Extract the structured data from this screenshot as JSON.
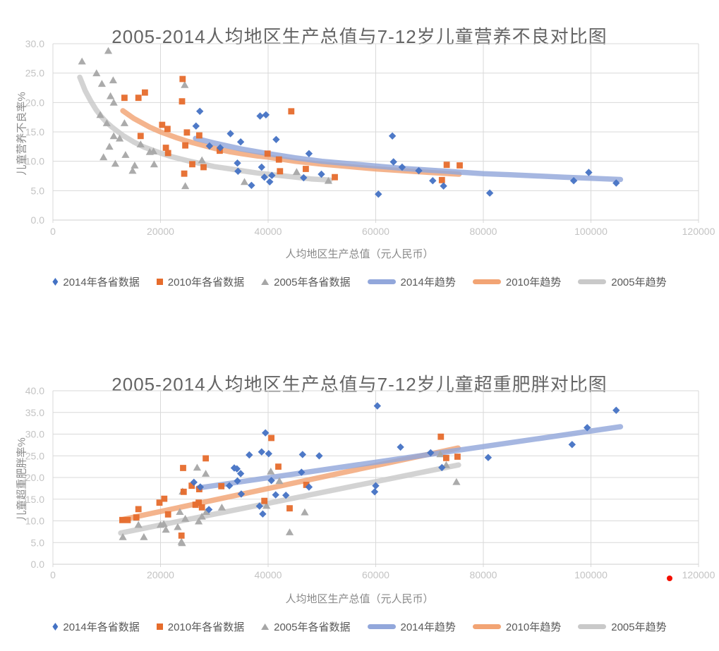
{
  "colors": {
    "blue": "#4472C4",
    "orange": "#E66C2C",
    "gray": "#A6A6A6",
    "blue_trend": "#92A7DB",
    "orange_trend": "#F2A474",
    "gray_trend": "#C9C9C9",
    "grid": "#D9D9D9",
    "axis_line": "#CFCFCF",
    "tick_text": "#C3C3C3",
    "axis_title_text": "#8A8A8A",
    "title_text": "#646464",
    "legend_text": "#595959",
    "red_dot": "#F40F00"
  },
  "legend": {
    "items": [
      {
        "label": "2014年各省数据",
        "marker": "diamond"
      },
      {
        "label": "2010年各省数据",
        "marker": "square"
      },
      {
        "label": "2005年各省数据",
        "marker": "triangle"
      },
      {
        "label": "2014年趋势",
        "marker": "line-blue"
      },
      {
        "label": "2010年趋势",
        "marker": "line-orange"
      },
      {
        "label": "2005年趋势",
        "marker": "line-gray"
      }
    ]
  },
  "annotations": {
    "red_dot": {
      "visible": true,
      "color": "#F40F00",
      "near_tick": "120000"
    }
  },
  "chart_data": [
    {
      "type": "scatter",
      "title": "2005-2014人均地区生产总值与7-12岁儿童营养不良对比图",
      "xlabel": "人均地区生产总值（元人民币）",
      "ylabel": "儿童营养不良率%",
      "xlim": [
        0,
        120000
      ],
      "ylim": [
        0,
        30
      ],
      "grid": true,
      "legend_position": "bottom",
      "xticks": [
        "0",
        "20000",
        "40000",
        "60000",
        "80000",
        "100000",
        "120000"
      ],
      "yticks": [
        "0.0",
        "5.0",
        "10.0",
        "15.0",
        "20.0",
        "25.0",
        "30.0"
      ],
      "series": [
        {
          "name": "2014年各省数据",
          "marker": "diamond",
          "color_key": "blue",
          "points": [
            [
              26600,
              16.0
            ],
            [
              27300,
              18.5
            ],
            [
              29100,
              12.6
            ],
            [
              31100,
              12.3
            ],
            [
              33000,
              14.7
            ],
            [
              34300,
              9.7
            ],
            [
              34400,
              8.3
            ],
            [
              34900,
              13.3
            ],
            [
              36900,
              5.9
            ],
            [
              38500,
              17.7
            ],
            [
              39600,
              17.9
            ],
            [
              38800,
              9.0
            ],
            [
              39300,
              7.3
            ],
            [
              40300,
              6.5
            ],
            [
              40700,
              7.6
            ],
            [
              41500,
              13.7
            ],
            [
              46600,
              7.2
            ],
            [
              47600,
              11.3
            ],
            [
              49900,
              7.8
            ],
            [
              60500,
              4.4
            ],
            [
              63100,
              14.3
            ],
            [
              63300,
              9.9
            ],
            [
              64900,
              9.0
            ],
            [
              68000,
              8.4
            ],
            [
              70600,
              6.7
            ],
            [
              72600,
              5.8
            ],
            [
              81200,
              4.6
            ],
            [
              96800,
              6.7
            ],
            [
              99600,
              8.1
            ],
            [
              104700,
              6.3
            ]
          ]
        },
        {
          "name": "2010年各省数据",
          "marker": "square",
          "color_key": "orange",
          "points": [
            [
              13300,
              20.8
            ],
            [
              15900,
              20.8
            ],
            [
              17100,
              21.7
            ],
            [
              16300,
              14.3
            ],
            [
              20300,
              16.2
            ],
            [
              21300,
              15.5
            ],
            [
              21000,
              12.3
            ],
            [
              21400,
              11.4
            ],
            [
              24000,
              20.2
            ],
            [
              24100,
              24.0
            ],
            [
              24900,
              14.9
            ],
            [
              24600,
              12.7
            ],
            [
              24400,
              7.9
            ],
            [
              25900,
              9.5
            ],
            [
              27200,
              14.4
            ],
            [
              28000,
              9.0
            ],
            [
              31000,
              11.8
            ],
            [
              39900,
              11.3
            ],
            [
              42000,
              10.3
            ],
            [
              42200,
              8.3
            ],
            [
              44300,
              18.5
            ],
            [
              47000,
              8.7
            ],
            [
              52400,
              7.3
            ],
            [
              72300,
              6.8
            ],
            [
              73200,
              9.4
            ],
            [
              75600,
              9.3
            ]
          ]
        },
        {
          "name": "2005年各省数据",
          "marker": "triangle",
          "color_key": "gray",
          "points": [
            [
              5400,
              27.0
            ],
            [
              8100,
              25.0
            ],
            [
              8800,
              17.9
            ],
            [
              9100,
              23.2
            ],
            [
              9400,
              10.7
            ],
            [
              10000,
              16.5
            ],
            [
              10300,
              28.8
            ],
            [
              10500,
              12.5
            ],
            [
              10700,
              21.1
            ],
            [
              11200,
              23.8
            ],
            [
              11300,
              20.0
            ],
            [
              11300,
              14.3
            ],
            [
              11600,
              9.6
            ],
            [
              12400,
              13.9
            ],
            [
              13300,
              16.5
            ],
            [
              13500,
              11.1
            ],
            [
              14800,
              8.4
            ],
            [
              15200,
              9.3
            ],
            [
              16300,
              12.9
            ],
            [
              18000,
              11.6
            ],
            [
              18700,
              11.7
            ],
            [
              18800,
              9.5
            ],
            [
              24500,
              23.0
            ],
            [
              24600,
              5.8
            ],
            [
              27700,
              10.2
            ],
            [
              35600,
              6.5
            ],
            [
              45300,
              8.2
            ],
            [
              51200,
              6.7
            ]
          ]
        }
      ],
      "trends": [
        {
          "name": "2014年趋势",
          "color_key": "blue_trend",
          "points": [
            [
              26500,
              13.9
            ],
            [
              30000,
              13.1
            ],
            [
              35000,
              12.1
            ],
            [
              40000,
              11.3
            ],
            [
              45000,
              10.6
            ],
            [
              50000,
              10.0
            ],
            [
              55000,
              9.6
            ],
            [
              60000,
              9.2
            ],
            [
              65000,
              8.8
            ],
            [
              70000,
              8.5
            ],
            [
              75000,
              8.2
            ],
            [
              80000,
              7.9
            ],
            [
              85000,
              7.7
            ],
            [
              90000,
              7.5
            ],
            [
              95000,
              7.3
            ],
            [
              100000,
              7.1
            ],
            [
              105500,
              6.9
            ]
          ]
        },
        {
          "name": "2010年趋势",
          "color_key": "orange_trend",
          "points": [
            [
              13000,
              18.6
            ],
            [
              15000,
              17.3
            ],
            [
              18000,
              15.8
            ],
            [
              20000,
              15.0
            ],
            [
              23000,
              14.0
            ],
            [
              25000,
              13.4
            ],
            [
              28000,
              12.7
            ],
            [
              30000,
              12.2
            ],
            [
              33000,
              11.6
            ],
            [
              35000,
              11.3
            ],
            [
              38000,
              10.9
            ],
            [
              40000,
              10.7
            ],
            [
              45000,
              10.0
            ],
            [
              50000,
              9.5
            ],
            [
              55000,
              9.1
            ],
            [
              60000,
              8.7
            ],
            [
              65000,
              8.4
            ],
            [
              70000,
              8.1
            ],
            [
              75500,
              7.8
            ]
          ]
        },
        {
          "name": "2005年趋势",
          "color_key": "gray_trend",
          "points": [
            [
              5000,
              24.3
            ],
            [
              6000,
              22.0
            ],
            [
              7000,
              20.3
            ],
            [
              8000,
              18.8
            ],
            [
              9000,
              17.6
            ],
            [
              10000,
              16.6
            ],
            [
              11000,
              15.8
            ],
            [
              12000,
              15.1
            ],
            [
              13000,
              14.4
            ],
            [
              15000,
              13.3
            ],
            [
              17000,
              12.4
            ],
            [
              20000,
              11.4
            ],
            [
              22000,
              10.8
            ],
            [
              25000,
              10.1
            ],
            [
              28000,
              9.5
            ],
            [
              30000,
              9.1
            ],
            [
              33000,
              8.7
            ],
            [
              35000,
              8.4
            ],
            [
              38000,
              8.0
            ],
            [
              40000,
              7.8
            ],
            [
              43000,
              7.5
            ],
            [
              45000,
              7.3
            ],
            [
              48000,
              7.0
            ],
            [
              51500,
              6.8
            ]
          ]
        }
      ]
    },
    {
      "type": "scatter",
      "title": "2005-2014人均地区生产总值与7-12岁儿童超重肥胖对比图",
      "xlabel": "人均地区生产总值（元人民币）",
      "ylabel": "儿童超重肥胖率%",
      "xlim": [
        0,
        120000
      ],
      "ylim": [
        0,
        40
      ],
      "grid": true,
      "legend_position": "bottom",
      "xticks": [
        "0",
        "20000",
        "40000",
        "60000",
        "80000",
        "100000",
        "120000"
      ],
      "yticks": [
        "0.0",
        "5.0",
        "10.0",
        "15.0",
        "20.0",
        "25.0",
        "30.0",
        "35.0",
        "40.0"
      ],
      "series": [
        {
          "name": "2014年各省数据",
          "marker": "diamond",
          "color_key": "blue",
          "points": [
            [
              26200,
              18.9
            ],
            [
              27400,
              17.8
            ],
            [
              29000,
              12.6
            ],
            [
              32800,
              18.1
            ],
            [
              33700,
              22.2
            ],
            [
              34200,
              22.0
            ],
            [
              34300,
              19.2
            ],
            [
              34900,
              20.9
            ],
            [
              35000,
              16.2
            ],
            [
              36500,
              25.2
            ],
            [
              38400,
              13.4
            ],
            [
              38800,
              25.9
            ],
            [
              39000,
              11.6
            ],
            [
              39500,
              30.3
            ],
            [
              40100,
              25.5
            ],
            [
              40600,
              19.3
            ],
            [
              41400,
              16.0
            ],
            [
              43300,
              15.9
            ],
            [
              46200,
              21.2
            ],
            [
              46400,
              25.3
            ],
            [
              47600,
              17.8
            ],
            [
              49500,
              25.0
            ],
            [
              59800,
              16.7
            ],
            [
              60000,
              18.1
            ],
            [
              60300,
              36.5
            ],
            [
              64600,
              27.0
            ],
            [
              70200,
              25.7
            ],
            [
              72300,
              22.3
            ],
            [
              80900,
              24.6
            ],
            [
              96500,
              27.6
            ],
            [
              99300,
              31.5
            ],
            [
              104700,
              35.5
            ]
          ]
        },
        {
          "name": "2010年各省数据",
          "marker": "square",
          "color_key": "orange",
          "points": [
            [
              12900,
              10.2
            ],
            [
              13900,
              10.2
            ],
            [
              15500,
              10.8
            ],
            [
              15900,
              12.7
            ],
            [
              19800,
              14.2
            ],
            [
              20700,
              15.1
            ],
            [
              21400,
              11.5
            ],
            [
              23900,
              6.6
            ],
            [
              24200,
              22.2
            ],
            [
              24300,
              16.7
            ],
            [
              25800,
              18.1
            ],
            [
              26500,
              13.7
            ],
            [
              27100,
              14.2
            ],
            [
              27200,
              17.3
            ],
            [
              27700,
              13.1
            ],
            [
              28400,
              24.4
            ],
            [
              31300,
              18.0
            ],
            [
              39300,
              14.6
            ],
            [
              40600,
              29.1
            ],
            [
              41900,
              22.5
            ],
            [
              44000,
              12.9
            ],
            [
              47100,
              18.3
            ],
            [
              72100,
              29.4
            ],
            [
              73100,
              24.5
            ],
            [
              75200,
              24.8
            ]
          ]
        },
        {
          "name": "2005年各省数据",
          "marker": "triangle",
          "color_key": "gray",
          "points": [
            [
              13000,
              6.3
            ],
            [
              15900,
              9.1
            ],
            [
              16900,
              6.3
            ],
            [
              20000,
              9.1
            ],
            [
              20600,
              9.3
            ],
            [
              21000,
              8.0
            ],
            [
              23200,
              8.6
            ],
            [
              23600,
              12.1
            ],
            [
              23900,
              5.2
            ],
            [
              24000,
              4.9
            ],
            [
              24100,
              16.8
            ],
            [
              24600,
              10.5
            ],
            [
              26800,
              22.3
            ],
            [
              27100,
              9.9
            ],
            [
              27700,
              11.0
            ],
            [
              28400,
              20.9
            ],
            [
              28500,
              12.1
            ],
            [
              31400,
              13.1
            ],
            [
              39700,
              13.5
            ],
            [
              40500,
              21.4
            ],
            [
              42100,
              19.2
            ],
            [
              44000,
              7.4
            ],
            [
              46800,
              12.0
            ],
            [
              72000,
              25.4
            ],
            [
              73100,
              22.9
            ],
            [
              75000,
              19.0
            ]
          ]
        }
      ],
      "trends": [
        {
          "name": "2014年趋势",
          "color_key": "blue_trend",
          "points": [
            [
              27000,
              17.6
            ],
            [
              105500,
              31.7
            ]
          ]
        },
        {
          "name": "2010年趋势",
          "color_key": "orange_trend",
          "points": [
            [
              12900,
              10.3
            ],
            [
              75300,
              26.8
            ]
          ]
        },
        {
          "name": "2005年趋势",
          "color_key": "gray_trend",
          "points": [
            [
              12600,
              7.2
            ],
            [
              75400,
              22.9
            ]
          ]
        }
      ]
    }
  ]
}
